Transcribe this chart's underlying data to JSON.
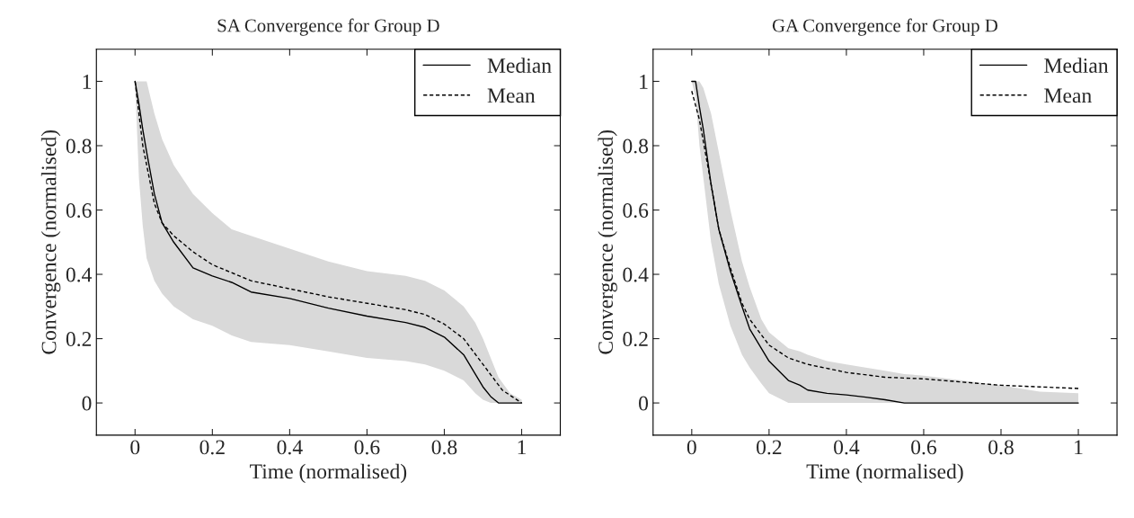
{
  "chart_data": [
    {
      "type": "line",
      "title": "SA Convergence for Group D",
      "xlabel": "Time (normalised)",
      "ylabel": "Convergence (normalised)",
      "xlim": [
        -0.1,
        1.1
      ],
      "ylim": [
        -0.1,
        1.1
      ],
      "xticks": [
        0,
        0.2,
        0.4,
        0.6,
        0.8,
        1
      ],
      "yticks": [
        0,
        0.2,
        0.4,
        0.6,
        0.8,
        1
      ],
      "grid": false,
      "legend": "top right",
      "marker": "none",
      "series": [
        {
          "name": "Median",
          "color": "#000000",
          "line_style": "solid",
          "x": [
            0,
            0.01,
            0.02,
            0.03,
            0.05,
            0.07,
            0.1,
            0.15,
            0.2,
            0.25,
            0.3,
            0.4,
            0.5,
            0.6,
            0.7,
            0.75,
            0.8,
            0.85,
            0.88,
            0.9,
            0.92,
            0.94,
            0.97,
            1
          ],
          "values": [
            1,
            0.93,
            0.85,
            0.78,
            0.65,
            0.56,
            0.5,
            0.42,
            0.395,
            0.375,
            0.345,
            0.325,
            0.295,
            0.27,
            0.25,
            0.235,
            0.205,
            0.15,
            0.09,
            0.05,
            0.02,
            0,
            0,
            0
          ],
          "upper": [
            1,
            1,
            1,
            1,
            0.9,
            0.82,
            0.74,
            0.65,
            0.59,
            0.54,
            0.52,
            0.48,
            0.44,
            0.41,
            0.395,
            0.38,
            0.35,
            0.3,
            0.25,
            0.2,
            0.14,
            0.08,
            0.03,
            0.01
          ],
          "lower": [
            1,
            0.7,
            0.55,
            0.45,
            0.38,
            0.34,
            0.3,
            0.26,
            0.24,
            0.21,
            0.19,
            0.18,
            0.16,
            0.14,
            0.13,
            0.12,
            0.1,
            0.07,
            0.03,
            0.01,
            0,
            0,
            0,
            0
          ]
        },
        {
          "name": "Mean",
          "color": "#000000",
          "line_style": "dashed",
          "x": [
            0,
            0.02,
            0.05,
            0.07,
            0.1,
            0.15,
            0.2,
            0.3,
            0.4,
            0.5,
            0.6,
            0.7,
            0.75,
            0.8,
            0.85,
            0.9,
            0.95,
            1
          ],
          "values": [
            1,
            0.8,
            0.62,
            0.56,
            0.52,
            0.47,
            0.43,
            0.38,
            0.355,
            0.33,
            0.31,
            0.29,
            0.275,
            0.245,
            0.2,
            0.12,
            0.04,
            0
          ]
        }
      ]
    },
    {
      "type": "line",
      "title": "GA Convergence for Group D",
      "xlabel": "Time (normalised)",
      "ylabel": "Convergence (normalised)",
      "xlim": [
        -0.1,
        1.1
      ],
      "ylim": [
        -0.1,
        1.1
      ],
      "xticks": [
        0,
        0.2,
        0.4,
        0.6,
        0.8,
        1
      ],
      "yticks": [
        0,
        0.2,
        0.4,
        0.6,
        0.8,
        1
      ],
      "grid": false,
      "legend": "top right",
      "marker": "none",
      "series": [
        {
          "name": "Median",
          "color": "#000000",
          "line_style": "solid",
          "x": [
            0,
            0.01,
            0.02,
            0.03,
            0.05,
            0.07,
            0.1,
            0.13,
            0.15,
            0.18,
            0.2,
            0.25,
            0.28,
            0.3,
            0.35,
            0.4,
            0.45,
            0.5,
            0.55,
            0.6,
            0.7,
            0.8,
            0.9,
            1
          ],
          "values": [
            1,
            1,
            0.92,
            0.85,
            0.68,
            0.54,
            0.41,
            0.3,
            0.23,
            0.17,
            0.13,
            0.07,
            0.055,
            0.04,
            0.03,
            0.025,
            0.018,
            0.01,
            0,
            0,
            0,
            0,
            0,
            0
          ],
          "upper": [
            1,
            1,
            1,
            0.98,
            0.9,
            0.78,
            0.6,
            0.44,
            0.36,
            0.26,
            0.22,
            0.17,
            0.16,
            0.15,
            0.13,
            0.12,
            0.11,
            0.1,
            0.09,
            0.085,
            0.07,
            0.055,
            0.035,
            0.03
          ],
          "lower": [
            1,
            0.95,
            0.8,
            0.7,
            0.5,
            0.37,
            0.24,
            0.15,
            0.11,
            0.06,
            0.03,
            0,
            0,
            0,
            0,
            0,
            0,
            0,
            0,
            0,
            0,
            0,
            0,
            0
          ]
        },
        {
          "name": "Mean",
          "color": "#000000",
          "line_style": "dashed",
          "x": [
            0,
            0.02,
            0.05,
            0.07,
            0.1,
            0.13,
            0.15,
            0.2,
            0.25,
            0.3,
            0.4,
            0.5,
            0.6,
            0.7,
            0.8,
            0.9,
            1
          ],
          "values": [
            0.97,
            0.88,
            0.68,
            0.54,
            0.42,
            0.31,
            0.26,
            0.18,
            0.14,
            0.12,
            0.095,
            0.08,
            0.075,
            0.065,
            0.055,
            0.05,
            0.045
          ]
        }
      ]
    }
  ]
}
